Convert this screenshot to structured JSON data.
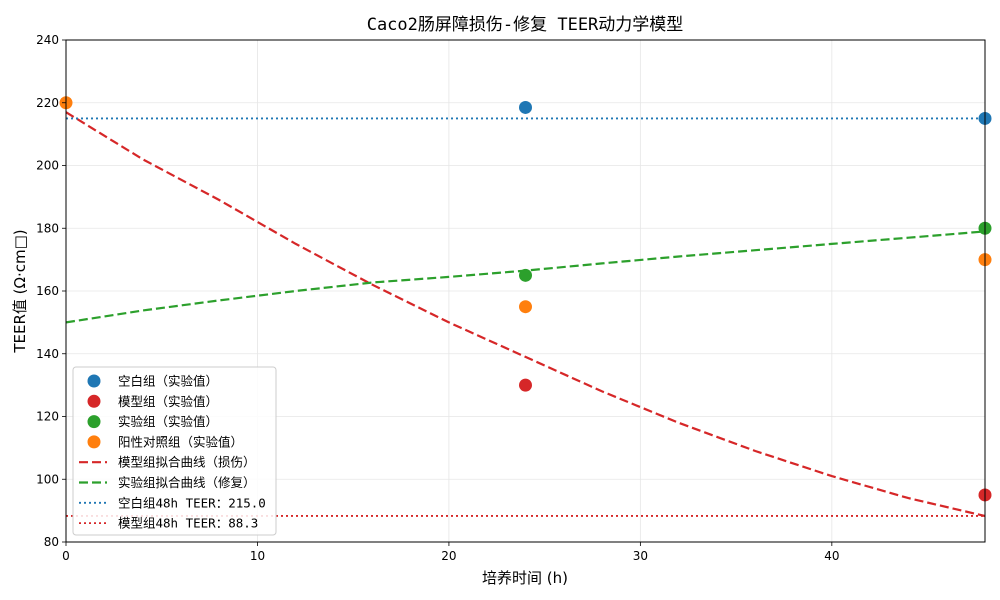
{
  "chart_data": {
    "type": "scatter",
    "title": "Caco2肠屏障损伤-修复 TEER动力学模型",
    "xlabel": "培养时间 (h)",
    "ylabel": "TEER值 (Ω·cm□)",
    "xlim": [
      0,
      48
    ],
    "ylim": [
      80,
      240
    ],
    "xticks": [
      0,
      10,
      20,
      30,
      40
    ],
    "yticks": [
      80,
      100,
      120,
      140,
      160,
      180,
      200,
      220,
      240
    ],
    "grid": true,
    "legend_position": "lower-left",
    "series": [
      {
        "name": "空白组（实验值）",
        "kind": "scatter",
        "color": "#1f77b4",
        "x": [
          24,
          48
        ],
        "y": [
          218.5,
          215
        ]
      },
      {
        "name": "模型组（实验值）",
        "kind": "scatter",
        "color": "#d62728",
        "x": [
          24,
          48
        ],
        "y": [
          130,
          95
        ]
      },
      {
        "name": "实验组（实验值）",
        "kind": "scatter",
        "color": "#2ca02c",
        "x": [
          24,
          48
        ],
        "y": [
          165,
          180
        ]
      },
      {
        "name": "阳性对照组（实验值）",
        "kind": "scatter",
        "color": "#ff7f0e",
        "x": [
          0,
          24,
          48
        ],
        "y": [
          220,
          155,
          170
        ]
      },
      {
        "name": "模型组拟合曲线（损伤）",
        "kind": "line",
        "style": "dashed",
        "color": "#d62728",
        "x": [
          0,
          4,
          8,
          12,
          16,
          20,
          24,
          28,
          32,
          36,
          40,
          44,
          48
        ],
        "y": [
          217,
          202,
          189,
          175,
          162,
          150,
          139,
          128,
          118,
          109,
          101,
          94,
          88.3
        ]
      },
      {
        "name": "实验组拟合曲线（修复）",
        "kind": "line",
        "style": "dashed",
        "color": "#2ca02c",
        "x": [
          0,
          4,
          8,
          12,
          16,
          20,
          24,
          28,
          32,
          36,
          40,
          44,
          48
        ],
        "y": [
          150,
          153.8,
          157,
          160,
          162.7,
          164.5,
          166.5,
          168.8,
          171,
          173,
          175,
          177,
          179
        ]
      },
      {
        "name": "空白组48h TEER：215.0",
        "kind": "hline",
        "style": "dotted",
        "color": "#1f77b4",
        "y": 215.0
      },
      {
        "name": "模型组48h TEER：88.3",
        "kind": "hline",
        "style": "dotted",
        "color": "#d62728",
        "y": 88.3
      }
    ]
  }
}
